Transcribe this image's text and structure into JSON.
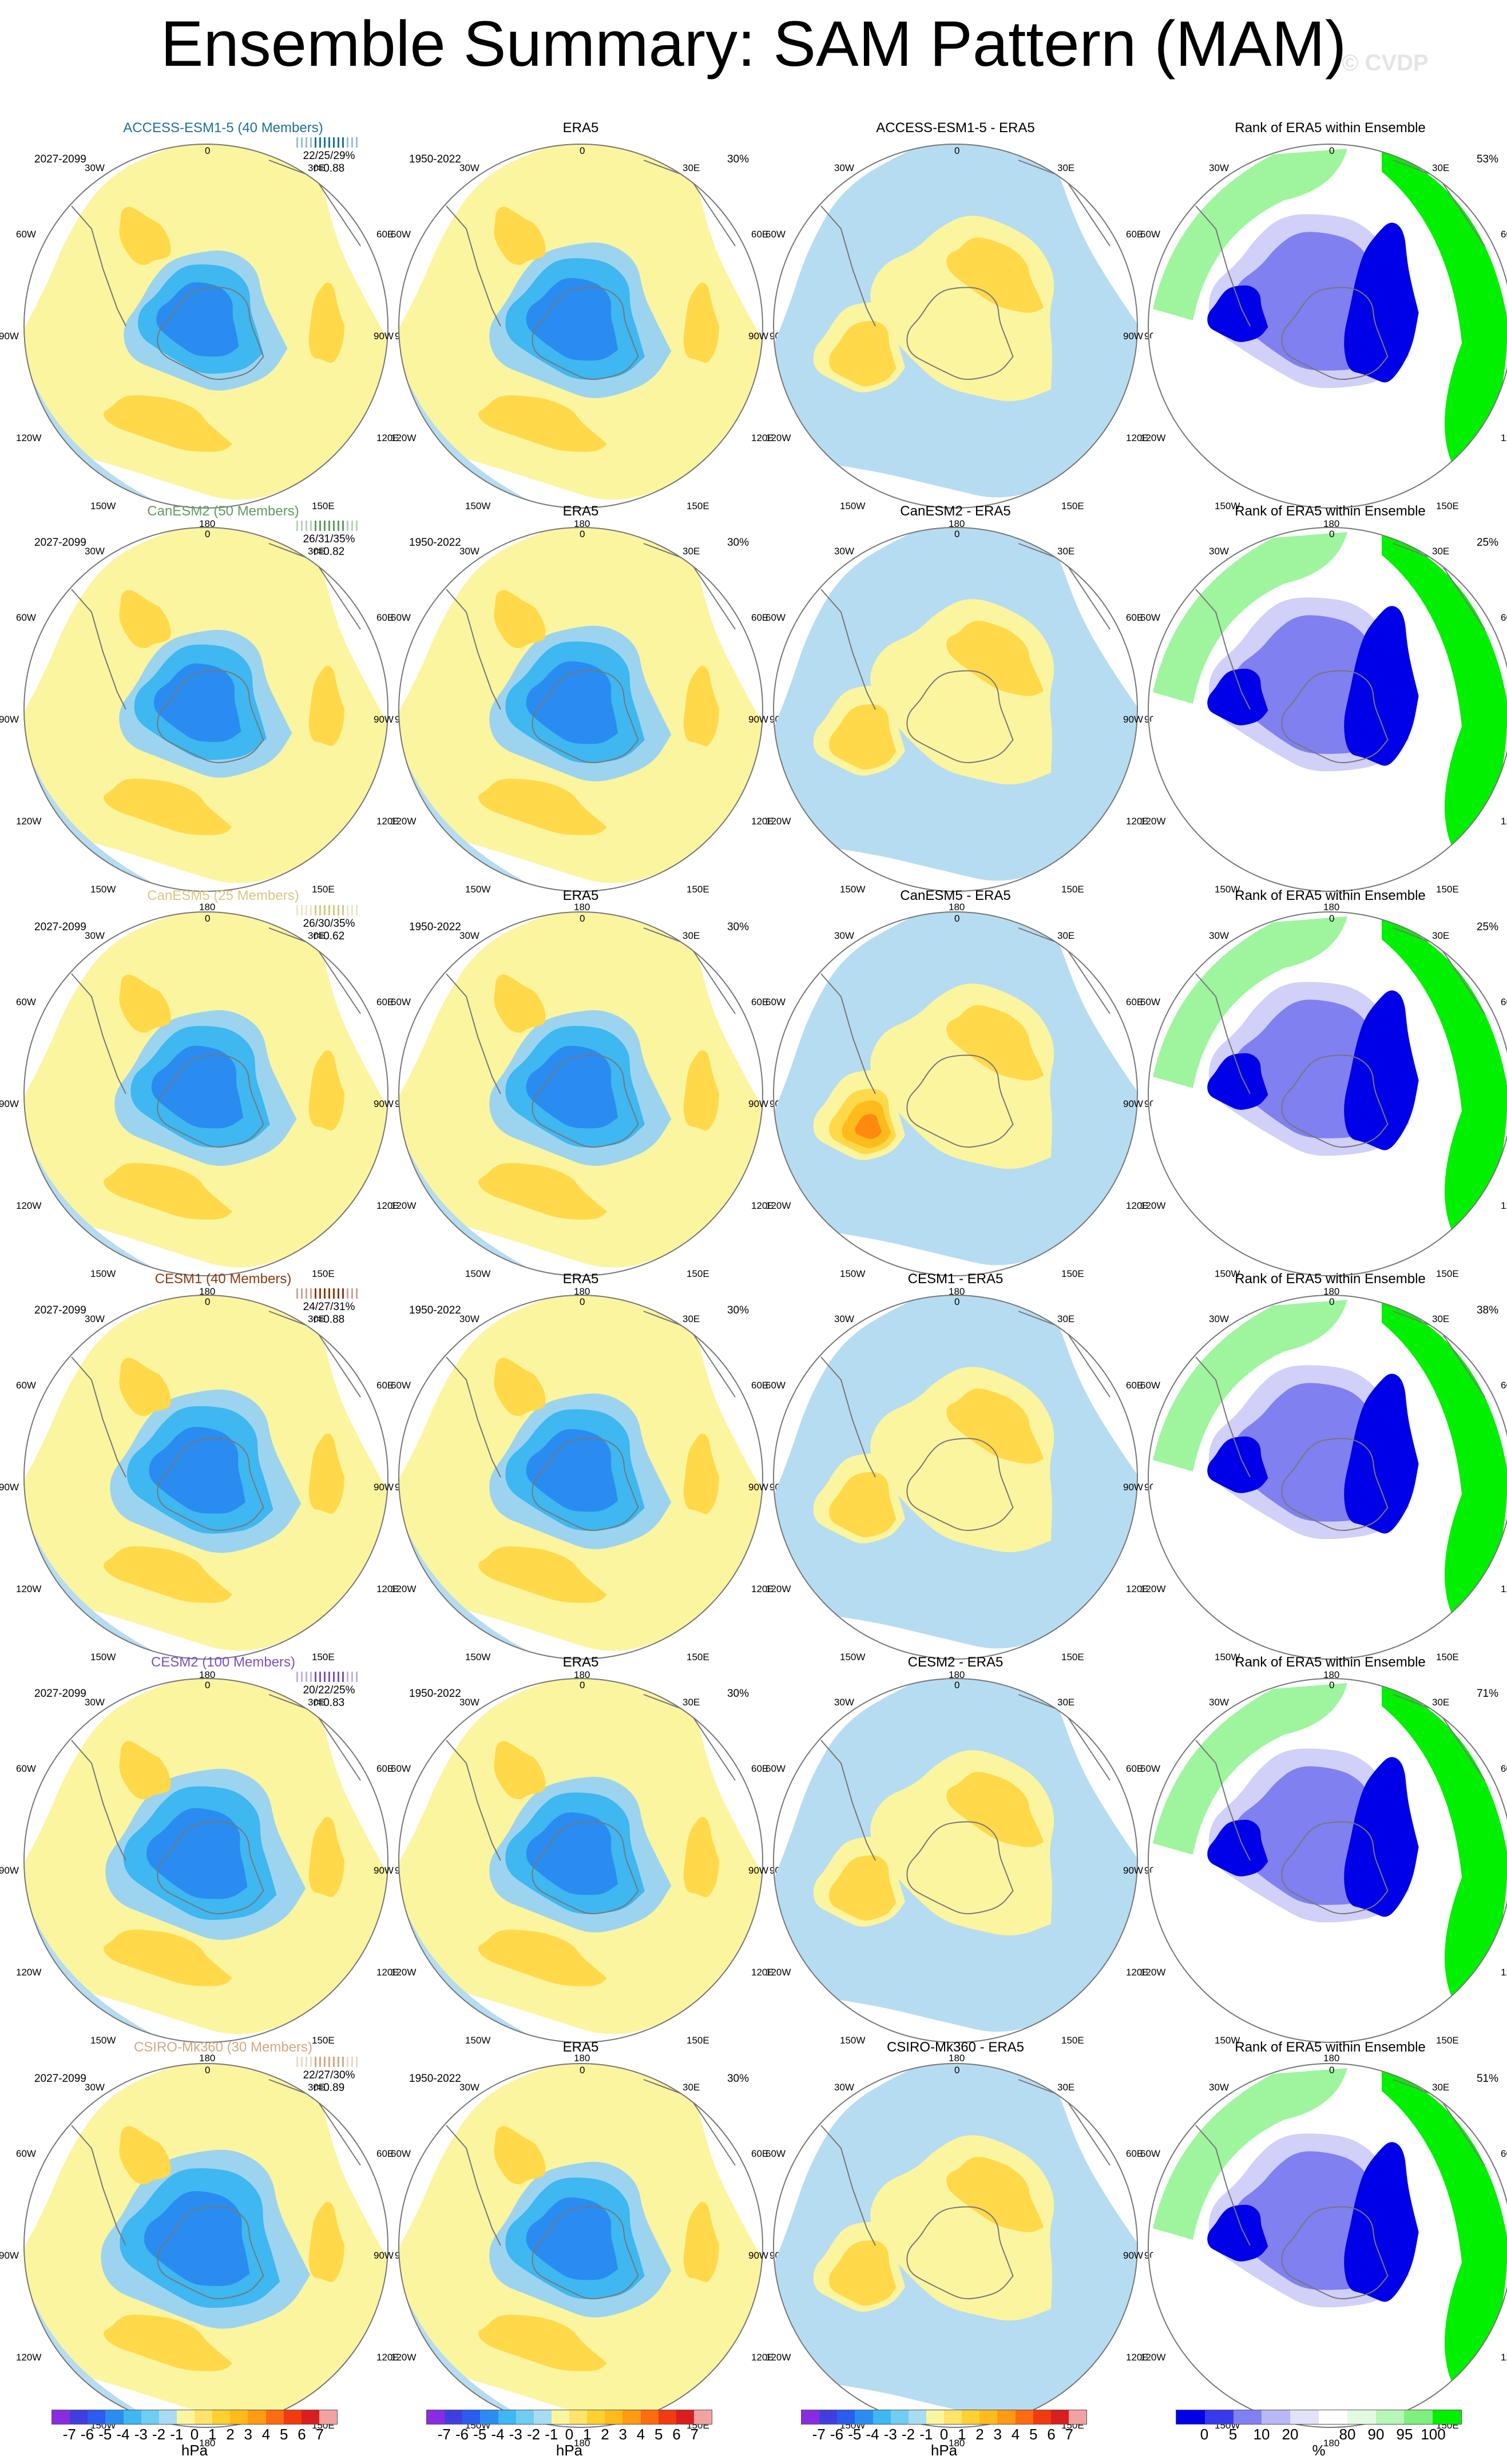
{
  "title": "Ensemble Summary: SAM Pattern (MAM)",
  "copyright": "© CVDP",
  "colors": {
    "ocean_bg": "#b6dcf1",
    "pos1": "#fbf5a0",
    "pos2": "#ffd94a",
    "pos3": "#ffbb1c",
    "pos4": "#ff8a10",
    "neg1": "#9cd4f0",
    "neg2": "#3fb7f0",
    "neg3": "#2a8cf0",
    "neg4": "#1e5cf0",
    "rank_green": "#00f000",
    "rank_lightgreen": "#9ef59e",
    "rank_blue": "#0000e8",
    "rank_lightblue": "#8080f0",
    "rank_paleblue": "#d0d0f8"
  },
  "lon_labels": {
    "top": "0",
    "r1": "30E",
    "r2": "60E",
    "r3": "90E",
    "r4": "120E",
    "r5": "150E",
    "bottom": "180",
    "l5": "150W",
    "l4": "120W",
    "l3": "90W",
    "l2": "60W",
    "l1": "30W"
  },
  "column_titles": {
    "era5": "ERA5",
    "rank": "Rank of ERA5 within Ensemble"
  },
  "obs_period": "1950-2022",
  "rows": [
    {
      "model": "ACCESS-ESM1-5 (40 Members)",
      "short": "ACCESS-ESM1-5",
      "color": "#1f6f9a",
      "period": "2027-2099",
      "stats": "22/25/29%",
      "r": "r=0.88",
      "obs_pct": "30%",
      "rank_pct": "53%",
      "diff_title": "ACCESS-ESM1-5 - ERA5"
    },
    {
      "model": "CanESM2 (50 Members)",
      "short": "CanESM2",
      "color": "#5f9a5f",
      "period": "2027-2099",
      "stats": "26/31/35%",
      "r": "r=0.82",
      "obs_pct": "30%",
      "rank_pct": "25%",
      "diff_title": "CanESM2 - ERA5"
    },
    {
      "model": "CanESM5 (25 Members)",
      "short": "CanESM5",
      "color": "#d7c784",
      "period": "2027-2099",
      "stats": "26/30/35%",
      "r": "r=0.62",
      "obs_pct": "30%",
      "rank_pct": "25%",
      "diff_title": "CanESM5 - ERA5"
    },
    {
      "model": "CESM1 (40 Members)",
      "short": "CESM1",
      "color": "#8a3a10",
      "period": "2027-2099",
      "stats": "24/27/31%",
      "r": "r=0.88",
      "obs_pct": "30%",
      "rank_pct": "38%",
      "diff_title": "CESM1 - ERA5"
    },
    {
      "model": "CESM2 (100 Members)",
      "short": "CESM2",
      "color": "#7a4fc8",
      "period": "2027-2099",
      "stats": "20/22/25%",
      "r": "r=0.83",
      "obs_pct": "30%",
      "rank_pct": "71%",
      "diff_title": "CESM2 - ERA5"
    },
    {
      "model": "CSIRO-Mk360 (30 Members)",
      "short": "CSIRO-Mk360",
      "color": "#d6a880",
      "period": "2027-2099",
      "stats": "22/27/30%",
      "r": "r=0.89",
      "obs_pct": "30%",
      "rank_pct": "51%",
      "diff_title": "CSIRO-Mk360 - ERA5"
    }
  ],
  "colorbar_hpa": {
    "colors": [
      "#8a2be2",
      "#3f3fe0",
      "#2a5cf0",
      "#2a8cf0",
      "#3fb7f0",
      "#6fcdf2",
      "#a8dcf3",
      "#fbf5a0",
      "#ffe36a",
      "#ffd031",
      "#ffbb1c",
      "#ff9a12",
      "#ff6b10",
      "#f23a10",
      "#d81e1e",
      "#f2a2a2"
    ],
    "ticks": [
      "-7",
      "-6",
      "-5",
      "-4",
      "-3",
      "-2",
      "-1",
      "0",
      "1",
      "2",
      "3",
      "4",
      "5",
      "6",
      "7"
    ],
    "unit": "hPa"
  },
  "colorbar_rank": {
    "colors": [
      "#0000e8",
      "#3838ee",
      "#8080f0",
      "#b8b8f6",
      "#e2e2fa",
      "#ffffff",
      "#e2fae2",
      "#b6f6b6",
      "#7ef07e",
      "#00f000"
    ],
    "ticks": [
      "0",
      "5",
      "10",
      "20",
      "80",
      "90",
      "95",
      "100"
    ],
    "unit": "%"
  }
}
